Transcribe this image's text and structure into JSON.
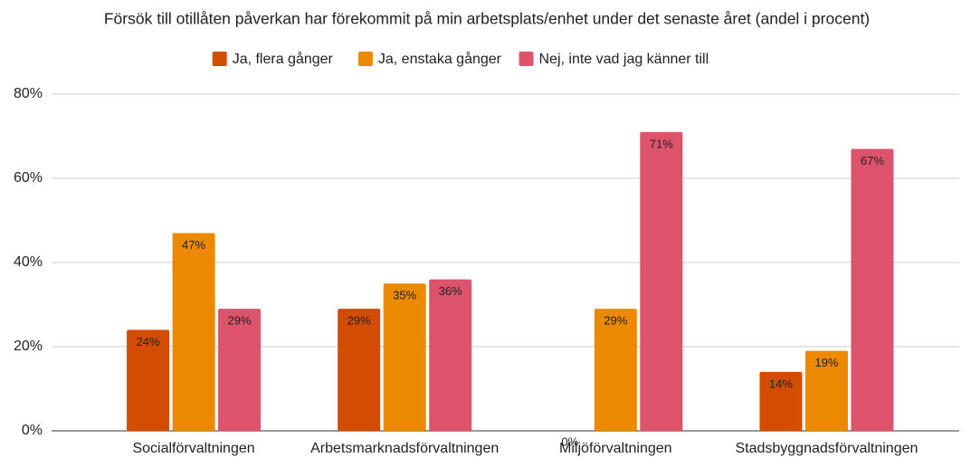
{
  "chart_data": {
    "type": "bar",
    "title": "Försök till otillåten påverkan har förekommit på min arbetsplats/enhet under det senaste året (andel i procent)",
    "categories": [
      "Socialförvaltningen",
      "Arbetsmarknadsförvaltningen",
      "Miljöförvaltningen",
      "Stadsbyggnadsförvaltningen"
    ],
    "series": [
      {
        "name": "Ja, flera gånger",
        "color": "#d24c02",
        "values": [
          24,
          29,
          0,
          14
        ],
        "value_labels": [
          "24%",
          "29%",
          "0%",
          "14%"
        ]
      },
      {
        "name": "Ja, enstaka gånger",
        "color": "#eb8a00",
        "values": [
          47,
          35,
          29,
          19
        ],
        "value_labels": [
          "47%",
          "35%",
          "29%",
          "19%"
        ]
      },
      {
        "name": "Nej, inte vad jag känner till",
        "color": "#dd536c",
        "values": [
          29,
          36,
          71,
          67
        ],
        "value_labels": [
          "29%",
          "36%",
          "71%",
          "67%"
        ]
      }
    ],
    "ylim": [
      0,
      80
    ],
    "yticks": [
      {
        "value": 0,
        "label": "0%"
      },
      {
        "value": 20,
        "label": "20%"
      },
      {
        "value": 40,
        "label": "40%"
      },
      {
        "value": 60,
        "label": "60%"
      },
      {
        "value": 80,
        "label": "80%"
      }
    ],
    "grid": true,
    "legend": "top"
  }
}
